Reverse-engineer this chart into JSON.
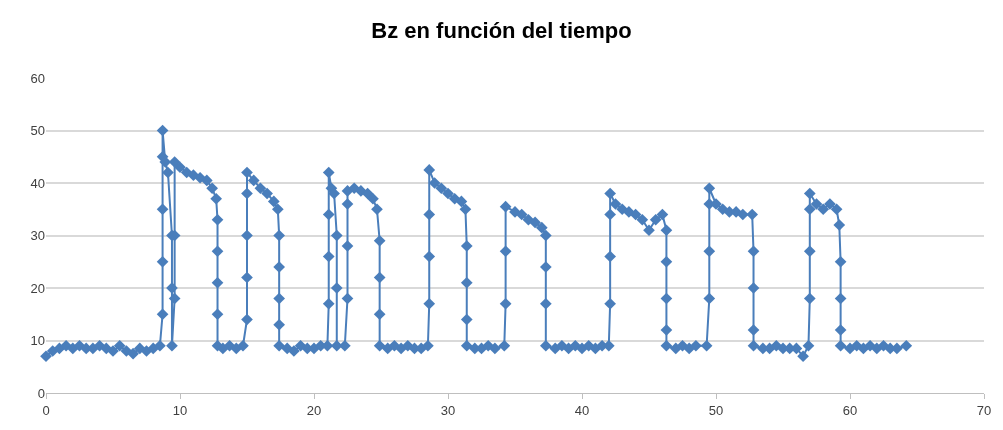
{
  "chart_data": {
    "type": "line",
    "title": "Bz en función del tiempo",
    "xlim": [
      0,
      70
    ],
    "xticks": [
      0,
      10,
      20,
      30,
      40,
      50,
      60,
      70
    ],
    "ylim": [
      0,
      60
    ],
    "yticks": [
      0,
      10,
      20,
      30,
      40,
      50,
      60
    ],
    "grid": "y",
    "marker": "diamond",
    "line_style": "solid",
    "series": [
      {
        "color": "#4a7ebb",
        "x": [
          0,
          0.5,
          1,
          1.5,
          2,
          2.5,
          3,
          3.5,
          4,
          4.5,
          5,
          5.5,
          6,
          6.5,
          7,
          7.5,
          8,
          8.5,
          8.7,
          8.7,
          8.7,
          8.7,
          8.7,
          8.9,
          9.1,
          9.4,
          9.4,
          9.4,
          9.6,
          9.6,
          9.6,
          10,
          10.5,
          11,
          11.5,
          12,
          12.4,
          12.7,
          12.8,
          12.8,
          12.8,
          12.8,
          12.8,
          13.2,
          13.7,
          14.2,
          14.7,
          15,
          15,
          15,
          15,
          15,
          15.5,
          16,
          16.5,
          17,
          17.3,
          17.4,
          17.4,
          17.4,
          17.4,
          17.4,
          18,
          18.5,
          19,
          19.5,
          20,
          20.5,
          21,
          21.1,
          21.1,
          21.1,
          21.1,
          21.3,
          21.5,
          21.7,
          21.7,
          21.7,
          22.3,
          22.5,
          22.5,
          22.5,
          22.5,
          23,
          23.5,
          24,
          24.4,
          24.7,
          24.9,
          24.9,
          24.9,
          24.9,
          25.5,
          26,
          26.5,
          27,
          27.5,
          28,
          28.5,
          28.6,
          28.6,
          28.6,
          28.6,
          29,
          29.5,
          30,
          30.5,
          31,
          31.3,
          31.4,
          31.4,
          31.4,
          31.4,
          32,
          32.5,
          33,
          33.5,
          34.2,
          34.3,
          34.3,
          34.3,
          35,
          35.5,
          36,
          36.5,
          37,
          37.3,
          37.3,
          37.3,
          37.3,
          38,
          38.5,
          39,
          39.5,
          40,
          40.5,
          41,
          41.5,
          42,
          42.1,
          42.1,
          42.1,
          42.1,
          42.5,
          43,
          43.5,
          44,
          44.5,
          45,
          45.5,
          46,
          46.3,
          46.3,
          46.3,
          46.3,
          46.3,
          47,
          47.5,
          48,
          48.5,
          49.3,
          49.5,
          49.5,
          49.5,
          49.5,
          50,
          50.5,
          51,
          51.5,
          52,
          52.7,
          52.8,
          52.8,
          52.8,
          52.8,
          53.5,
          54,
          54.5,
          55,
          55.5,
          56,
          56.5,
          56.9,
          57,
          57,
          57,
          57,
          57.5,
          58,
          58.5,
          59,
          59.2,
          59.3,
          59.3,
          59.3,
          59.3,
          60,
          60.5,
          61,
          61.5,
          62,
          62.5,
          63,
          63.5,
          64.2
        ],
        "values": [
          7,
          8,
          8.5,
          9,
          8.5,
          9,
          8.5,
          8.5,
          9,
          8.5,
          8,
          9,
          8,
          7.5,
          8.5,
          8,
          8.5,
          9,
          15,
          25,
          35,
          45,
          50,
          44,
          42,
          30,
          20,
          9,
          18,
          30,
          44,
          43,
          42,
          41.5,
          41,
          40.5,
          39,
          37,
          33,
          27,
          21,
          15,
          9,
          8.5,
          9,
          8.5,
          9,
          14,
          22,
          30,
          38,
          42,
          40.5,
          39,
          38,
          36.5,
          35,
          30,
          24,
          18,
          13,
          9,
          8.5,
          8,
          9,
          8.5,
          8.5,
          9,
          9,
          17,
          26,
          34,
          42,
          39,
          38,
          30,
          20,
          9,
          9,
          18,
          28,
          36,
          38.5,
          39,
          38.5,
          38,
          37,
          35,
          29,
          22,
          15,
          9,
          8.5,
          9,
          8.5,
          9,
          8.5,
          8.5,
          9,
          17,
          26,
          34,
          42.5,
          40,
          39,
          38,
          37,
          36.5,
          35,
          28,
          21,
          14,
          9,
          8.5,
          8.5,
          9,
          8.5,
          9,
          17,
          27,
          35.5,
          34.5,
          34,
          33,
          32.5,
          31.5,
          30,
          24,
          17,
          9,
          8.5,
          9,
          8.5,
          9,
          8.5,
          9,
          8.5,
          9,
          9,
          17,
          26,
          34,
          38,
          36,
          35,
          34.5,
          34,
          33,
          31,
          33,
          34,
          31,
          25,
          18,
          12,
          9,
          8.5,
          9,
          8.5,
          9,
          9,
          18,
          27,
          36,
          39,
          36,
          35,
          34.5,
          34.5,
          34,
          34,
          27,
          20,
          12,
          9,
          8.5,
          8.5,
          9,
          8.5,
          8.5,
          8.5,
          7,
          9,
          18,
          27,
          35,
          38,
          36,
          35,
          36,
          35,
          32,
          25,
          18,
          12,
          9,
          8.5,
          9,
          8.5,
          9,
          8.5,
          9,
          8.5,
          8.5,
          9
        ]
      }
    ]
  }
}
